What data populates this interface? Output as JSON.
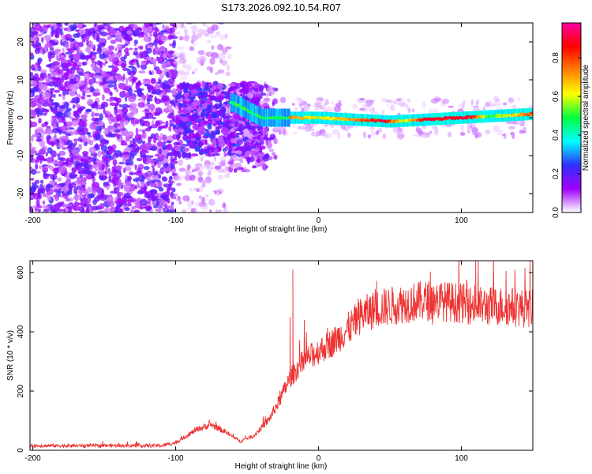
{
  "title": "S173.2026.092.10.54.R07",
  "chart_data": [
    {
      "type": "heatmap",
      "name": "spectrogram",
      "xlabel": "Height of straight line (km)",
      "ylabel": "Frequency (Hz)",
      "xlim": [
        -202,
        150
      ],
      "ylim": [
        -25,
        25
      ],
      "xticks": [
        -200,
        -100,
        0,
        100
      ],
      "xtick_labels": [
        "-200",
        "-100",
        "0",
        "100"
      ],
      "yticks": [
        -20,
        -10,
        0,
        10,
        20
      ],
      "ytick_labels": [
        "-20",
        "-10",
        "0",
        "10",
        "20"
      ],
      "colorbar": {
        "label": "Normalized spectral amplitude",
        "range": [
          0.0,
          0.98
        ],
        "ticks": [
          0.0,
          0.2,
          0.4,
          0.6,
          0.8
        ],
        "tick_labels": [
          "0.0",
          "0.2",
          "0.4",
          "0.6",
          "0.8"
        ],
        "colors": [
          "#ffffff",
          "#a000ff",
          "#3030ff",
          "#00ffff",
          "#00ff40",
          "#ffff00",
          "#ff8000",
          "#ff0000",
          "#ff00a0"
        ]
      },
      "ridge": {
        "description": "narrow band near 0 Hz",
        "x_start": -20,
        "frequency_trend": [
          [
            -60,
            4
          ],
          [
            -40,
            0
          ],
          [
            0,
            0
          ],
          [
            50,
            -1
          ],
          [
            100,
            0
          ],
          [
            150,
            1
          ]
        ],
        "amplitude_trend": [
          [
            -20,
            0.75
          ],
          [
            0,
            0.6
          ],
          [
            20,
            0.7
          ],
          [
            45,
            0.9
          ],
          [
            60,
            0.6
          ],
          [
            75,
            0.9
          ],
          [
            105,
            0.9
          ],
          [
            120,
            0.5
          ],
          [
            150,
            0.8
          ]
        ]
      },
      "noise_regions": [
        {
          "x_range": [
            -202,
            -100
          ],
          "freq_range": [
            -25,
            25
          ],
          "density": "high"
        },
        {
          "x_range": [
            -100,
            -60
          ],
          "freq_range": [
            -25,
            25
          ],
          "density": "low"
        },
        {
          "x_range": [
            -100,
            -40
          ],
          "freq_range": [
            -10,
            10
          ],
          "density": "high"
        }
      ]
    },
    {
      "type": "line",
      "name": "snr",
      "xlabel": "Height of straight line (km)",
      "ylabel": "SNR (10 * v/v)",
      "xlim": [
        -202,
        150
      ],
      "ylim": [
        0,
        640
      ],
      "xticks": [
        -200,
        -100,
        0,
        100
      ],
      "xtick_labels": [
        "-200",
        "-100",
        "0",
        "100"
      ],
      "yticks": [
        0,
        200,
        400,
        600
      ],
      "ytick_labels": [
        "0",
        "200",
        "400",
        "600"
      ],
      "color": "#ee3333",
      "trend": {
        "x": [
          -202,
          -110,
          -100,
          -85,
          -75,
          -65,
          -55,
          -45,
          -35,
          -28,
          -20,
          -10,
          0,
          10,
          20,
          30,
          40,
          60,
          80,
          100,
          110,
          130,
          150
        ],
        "y": [
          15,
          15,
          25,
          70,
          85,
          60,
          30,
          50,
          100,
          160,
          240,
          300,
          330,
          360,
          400,
          450,
          470,
          490,
          500,
          490,
          480,
          480,
          470
        ]
      },
      "spikes": [
        {
          "x": -18,
          "y": 610
        },
        {
          "x": -20,
          "y": 450
        },
        {
          "x": -10,
          "y": 440
        },
        {
          "x": 110,
          "y": 640
        },
        {
          "x": 148,
          "y": 640
        }
      ]
    }
  ]
}
